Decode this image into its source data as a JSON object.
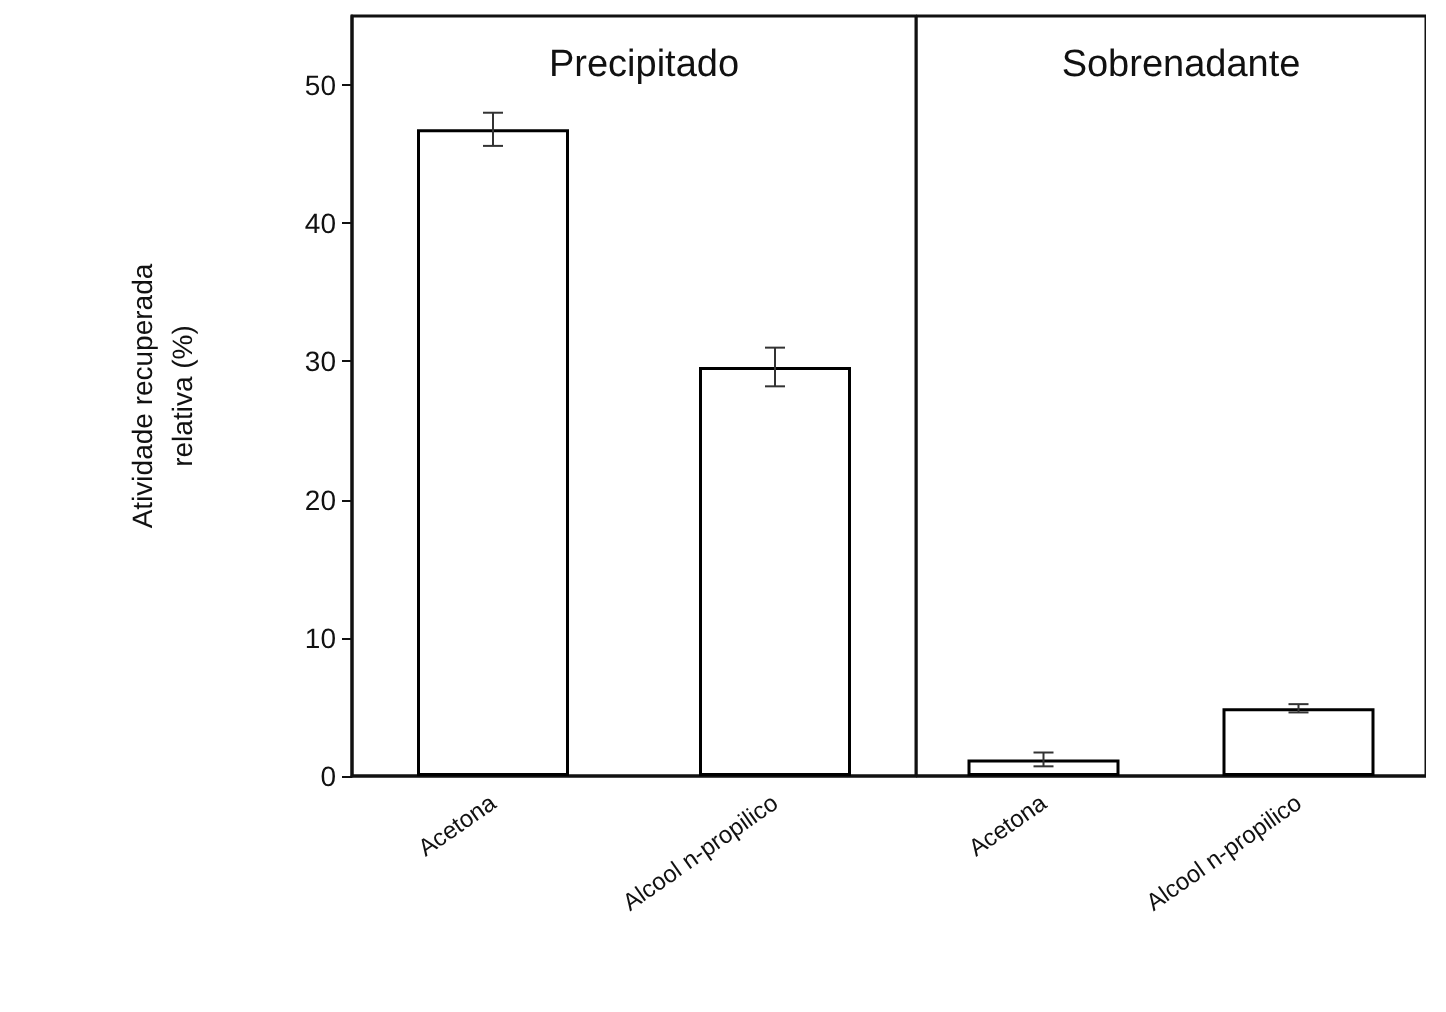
{
  "chart_data": [
    {
      "type": "bar",
      "title": "Precipitado",
      "ylabel": "Atividade recuperada\nrelativa (%)",
      "categories": [
        "Acetona",
        "Alcool n-propilico"
      ],
      "values": [
        46.8,
        29.6
      ],
      "errors": [
        1.2,
        1.4
      ],
      "color": "#ffffff",
      "ylim": [
        0,
        55
      ],
      "yticks": [
        0,
        10,
        20,
        30,
        40,
        50
      ]
    },
    {
      "type": "bar",
      "title": "Sobrenadante",
      "categories": [
        "Acetona",
        "Alcool n-propilico"
      ],
      "values": [
        1.2,
        4.9
      ],
      "errors": [
        0.5,
        0.3
      ],
      "color": "#ffffff",
      "ylim": [
        0,
        55
      ],
      "yticks": [
        0,
        10,
        20,
        30,
        40,
        50
      ],
      "tick_labels": "x"
    }
  ]
}
